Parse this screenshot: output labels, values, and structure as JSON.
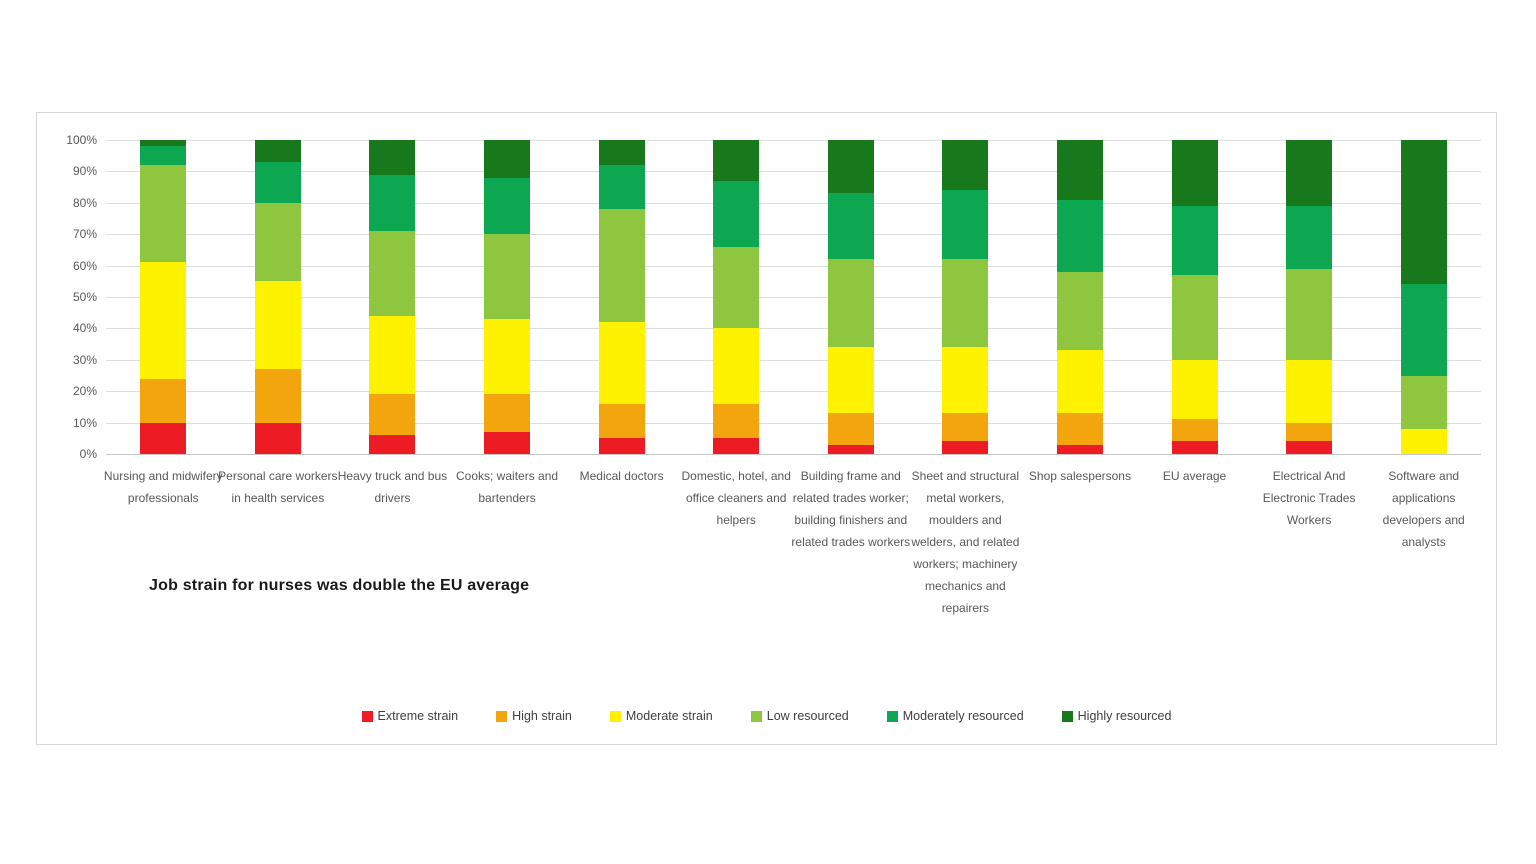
{
  "chart_data": {
    "type": "bar",
    "stacked": true,
    "orientation": "vertical",
    "annotation": "Job strain for nurses was double the EU average",
    "grid": true,
    "legend_position": "bottom",
    "ylim": [
      0,
      100
    ],
    "ytick_unit": "%",
    "yticks": [
      "0%",
      "10%",
      "20%",
      "30%",
      "40%",
      "50%",
      "60%",
      "70%",
      "80%",
      "90%",
      "100%"
    ],
    "categories": [
      "Nursing and midwifery professionals",
      "Personal care workers in health services",
      "Heavy truck and bus drivers",
      "Cooks; waiters and bartenders",
      "Medical doctors",
      "Domestic, hotel, and office cleaners and helpers",
      "Building frame and related trades worker; building finishers and related trades workers",
      "Sheet and structural metal workers, moulders and welders, and related workers; machinery mechanics and repairers",
      "Shop salespersons",
      "EU average",
      "Electrical And Electronic Trades Workers",
      "Software and applications developers and analysts"
    ],
    "series": [
      {
        "name": "Extreme strain",
        "color": "#ec1b24",
        "values": [
          10,
          10,
          6,
          7,
          5,
          5,
          3,
          4,
          3,
          4,
          4,
          0
        ]
      },
      {
        "name": "High strain",
        "color": "#f2a50c",
        "values": [
          14,
          17,
          13,
          12,
          11,
          11,
          10,
          9,
          10,
          7,
          6,
          0
        ]
      },
      {
        "name": "Moderate strain",
        "color": "#fff200",
        "values": [
          37,
          28,
          25,
          24,
          26,
          24,
          21,
          21,
          20,
          19,
          20,
          8
        ]
      },
      {
        "name": "Low resourced",
        "color": "#8ec63f",
        "values": [
          31,
          25,
          27,
          27,
          36,
          26,
          28,
          28,
          25,
          27,
          29,
          17
        ]
      },
      {
        "name": "Moderately resourced",
        "color": "#0ca750",
        "values": [
          6,
          13,
          18,
          18,
          14,
          21,
          21,
          22,
          23,
          22,
          20,
          29
        ]
      },
      {
        "name": "Highly resourced",
        "color": "#17791b",
        "values": [
          2,
          7,
          11,
          12,
          8,
          13,
          17,
          16,
          19,
          21,
          21,
          46
        ]
      }
    ]
  }
}
